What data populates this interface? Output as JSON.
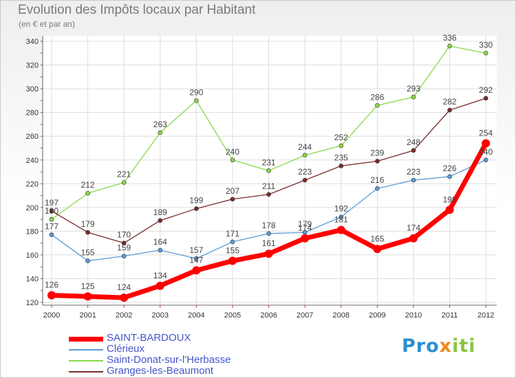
{
  "chart_data": {
    "type": "line",
    "title": "Evolution des Impôts locaux par Habitant",
    "subtitle": "(en € et par an)",
    "xlabel": "",
    "ylabel": "",
    "x": [
      "2000",
      "2001",
      "2002",
      "2003",
      "2004",
      "2005",
      "2006",
      "2007",
      "2008",
      "2009",
      "2010",
      "2011",
      "2012"
    ],
    "ylim": [
      120,
      345
    ],
    "yticks": [
      120,
      140,
      160,
      180,
      200,
      220,
      240,
      260,
      280,
      300,
      320,
      340
    ],
    "series": [
      {
        "name": "SAINT-BARDOUX",
        "color": "#ff0000",
        "values": [
          126,
          125,
          124,
          134,
          147,
          155,
          161,
          174,
          181,
          165,
          174,
          198,
          254
        ]
      },
      {
        "name": "Clérieux",
        "color": "#5b9bd5",
        "values": [
          177,
          155,
          159,
          164,
          157,
          171,
          178,
          179,
          192,
          216,
          223,
          226,
          240
        ]
      },
      {
        "name": "Saint-Donat-sur-l'Herbasse",
        "color": "#88d848",
        "values": [
          190,
          212,
          221,
          263,
          290,
          240,
          231,
          244,
          252,
          286,
          293,
          336,
          330
        ]
      },
      {
        "name": "Granges-les-Beaumont",
        "color": "#7a2a2a",
        "values": [
          197,
          179,
          170,
          189,
          199,
          207,
          211,
          223,
          235,
          239,
          248,
          282,
          292
        ]
      }
    ]
  },
  "brand": {
    "parts": [
      "Pro",
      "x",
      "iti"
    ]
  }
}
